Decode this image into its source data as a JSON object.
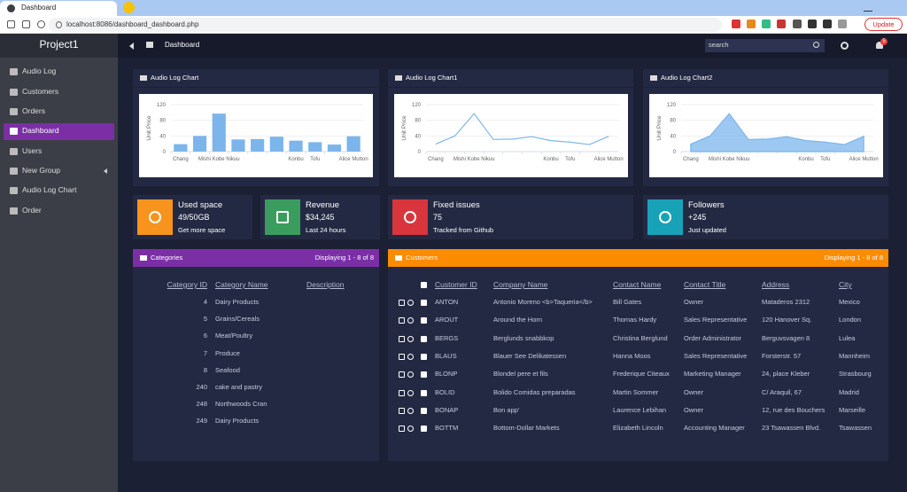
{
  "browser": {
    "tab_title": "Dashboard",
    "url": "localhost:8086/dashboard_dashboard.php",
    "update_button": "Update"
  },
  "header": {
    "brand": "Project1",
    "breadcrumb": "Dashboard",
    "search_placeholder": "search",
    "notifications": "5"
  },
  "sidebar": {
    "items": [
      "Audio Log",
      "Customers",
      "Orders",
      "Dashboard",
      "Users",
      "New Group",
      "Audio Log Chart",
      "Order"
    ]
  },
  "chart_data": [
    {
      "type": "bar",
      "title": "Audio Log Chart",
      "y_label": "Unit Price",
      "categories": [
        "Chang",
        null,
        "Mishi Kobe Nikuu",
        null,
        null,
        null,
        "Konbu",
        "Tofu",
        null,
        "Alice Mutton"
      ],
      "values": [
        19,
        40,
        97,
        31,
        32,
        38,
        28,
        24,
        18,
        39
      ],
      "color": "#7cb5ec",
      "ylim": [
        0,
        120
      ],
      "yticks": [
        0,
        40,
        80,
        120
      ],
      "grid": true
    },
    {
      "type": "line",
      "title": "Audio Log Chart1",
      "y_label": "Unit Price",
      "categories": [
        "Chang",
        null,
        "Mishi Kobe Nikuu",
        null,
        null,
        null,
        "Konbu",
        "Tofu",
        null,
        "Alice Mutton"
      ],
      "values": [
        19,
        40,
        97,
        31,
        32,
        38,
        28,
        24,
        18,
        39
      ],
      "color": "#7cb5ec",
      "ylim": [
        0,
        120
      ],
      "yticks": [
        0,
        40,
        80,
        120
      ],
      "grid": true
    },
    {
      "type": "area",
      "title": "Audio Log Chart2",
      "y_label": "Unit Price",
      "categories": [
        "Chang",
        null,
        "Mishi Kobe Nikuu",
        null,
        null,
        null,
        "Konbu",
        "Tofu",
        null,
        "Alice Mutton"
      ],
      "values": [
        19,
        40,
        97,
        31,
        32,
        38,
        28,
        24,
        18,
        39
      ],
      "color": "#7cb5ec",
      "ylim": [
        0,
        120
      ],
      "yticks": [
        0,
        40,
        80,
        120
      ],
      "grid": true
    }
  ],
  "stats": [
    {
      "title": "Used space",
      "value": "49/50GB",
      "note": "Get more space",
      "color": "#f7941d"
    },
    {
      "title": "Revenue",
      "value": "$34,245",
      "note": "Last 24 hours",
      "color": "#3a9d5d"
    },
    {
      "title": "Fixed issues",
      "value": "75",
      "note": "Tracked from Github",
      "color": "#d8353c"
    },
    {
      "title": "Followers",
      "value": "+245",
      "note": "Just updated",
      "color": "#17a2b8"
    }
  ],
  "categories": {
    "title": "Categories",
    "status": "Displaying 1 - 8 of 8",
    "color": "#7b2fa5",
    "columns": [
      "Category ID",
      "Category Name",
      "Description"
    ],
    "rows": [
      [
        "4",
        "Dairy Products",
        ""
      ],
      [
        "5",
        "Grains/Cereals",
        ""
      ],
      [
        "6",
        "Meat/Poultry",
        ""
      ],
      [
        "7",
        "Produce",
        ""
      ],
      [
        "8",
        "Seafood",
        ""
      ],
      [
        "240",
        "cake and pastry",
        ""
      ],
      [
        "248",
        "Northwoods Cran",
        ""
      ],
      [
        "249",
        "Dairy Products",
        ""
      ]
    ]
  },
  "customers": {
    "title": "Customers",
    "status": "Displaying 1 - 8 of 8",
    "color": "#fb8c00",
    "columns": [
      "Customer ID",
      "Company Name",
      "Contact Name",
      "Contact Title",
      "Address",
      "City"
    ],
    "rows": [
      [
        "ANTON",
        "Antonio Moreno <b>Taqueria</b>",
        "Bill Gates",
        "Owner",
        "Mataderos 2312",
        "Mexico"
      ],
      [
        "AROUT",
        "Around the Horn",
        "Thomas Hardy",
        "Sales Representative",
        "120 Hanover Sq.",
        "London"
      ],
      [
        "BERGS",
        "Berglunds snabbkop",
        "Christina Berglund",
        "Order Administrator",
        "Berguvsvagen 8",
        "Lulea"
      ],
      [
        "BLAUS",
        "Blauer See Delikatessen",
        "Hanna Moos",
        "Sales Representative",
        "Forsterstr. 57",
        "Mannheim"
      ],
      [
        "BLONP",
        "Blondel pere et fils",
        "Frederique Citeaux",
        "Marketing Manager",
        "24, place Kleber",
        "Strasbourg"
      ],
      [
        "BOLID",
        "Bolido Comidas preparadas",
        "Martin Sommer",
        "Owner",
        "C/ Araquil, 67",
        "Madrid"
      ],
      [
        "BONAP",
        "Bon app'",
        "Laurence Lebihan",
        "Owner",
        "12, rue des Bouchers",
        "Marseille"
      ],
      [
        "BOTTM",
        "Bottom-Dollar Markets",
        "Elizabeth Lincoln",
        "Accounting Manager",
        "23 Tsawassen Blvd.",
        "Tsawassen"
      ]
    ]
  }
}
